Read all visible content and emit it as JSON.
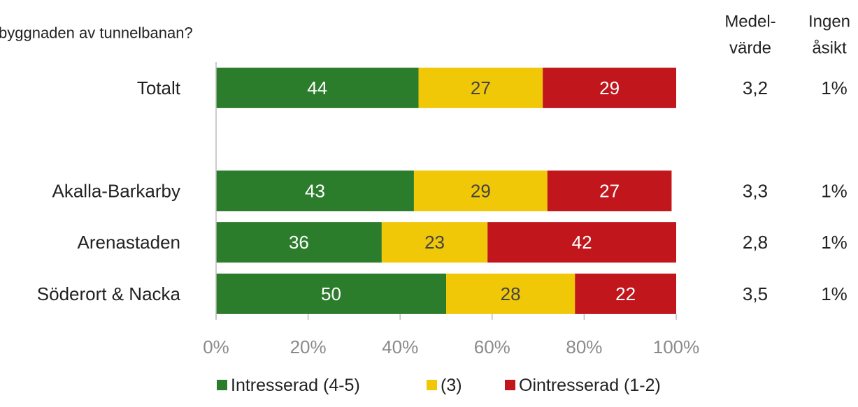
{
  "chart_data": {
    "type": "stacked_barh",
    "title": "byggnaden av tunnelbanan?",
    "categories": [
      "Totalt",
      null,
      "Akalla-Barkarby",
      "Arenastaden",
      "Söderort & Nacka"
    ],
    "series": [
      {
        "name": "Intresserad (4-5)",
        "color": "#2b7c2b",
        "values": [
          44,
          null,
          43,
          36,
          50
        ]
      },
      {
        "name": "(3)",
        "color": "#f0c808",
        "values": [
          27,
          null,
          29,
          23,
          28
        ]
      },
      {
        "name": "Ointresserad (1-2)",
        "color": "#c0161c",
        "values": [
          29,
          null,
          27,
          42,
          22
        ]
      }
    ],
    "xlim": [
      0,
      100
    ],
    "xticks": [
      {
        "value": 0,
        "label": "0%"
      },
      {
        "value": 20,
        "label": "20%"
      },
      {
        "value": 40,
        "label": "40%"
      },
      {
        "value": 60,
        "label": "60%"
      },
      {
        "value": 80,
        "label": "80%"
      },
      {
        "value": 100,
        "label": "100%"
      }
    ],
    "columns": [
      {
        "header": [
          "Medel-",
          "värde"
        ],
        "values": [
          3.2,
          null,
          3.3,
          2.8,
          3.5
        ],
        "value_labels": [
          "3,2",
          null,
          "3,3",
          "2,8",
          "3,5"
        ]
      },
      {
        "header": [
          "Ingen",
          "åsikt"
        ],
        "values": [
          1,
          null,
          1,
          1,
          1
        ],
        "value_labels": [
          "1%",
          null,
          "1%",
          "1%",
          "1%"
        ]
      }
    ],
    "legend": "bottom"
  }
}
